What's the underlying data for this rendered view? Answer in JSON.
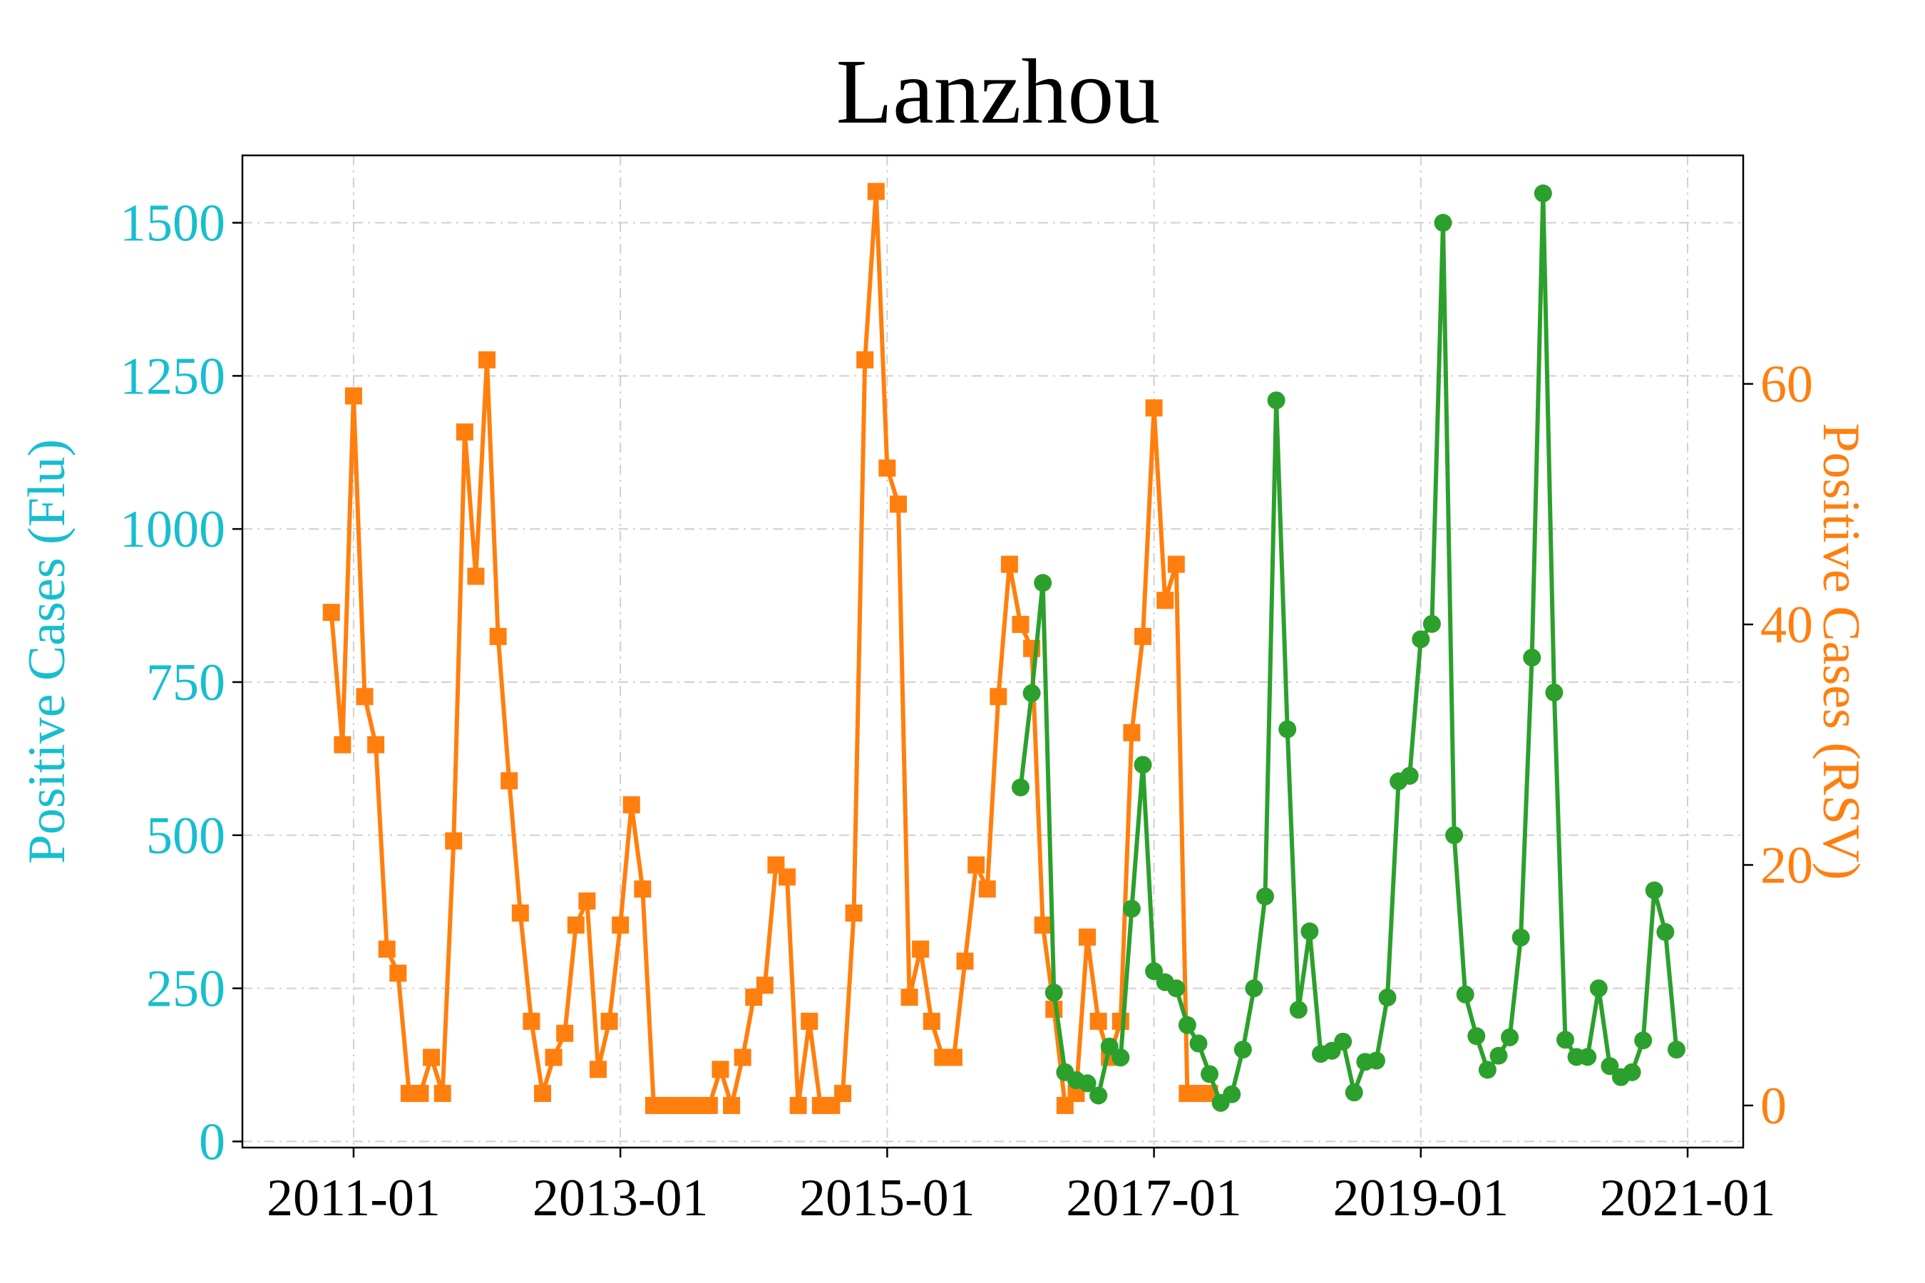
{
  "chart_data": {
    "type": "line",
    "title": "Lanzhou",
    "xlabel": "",
    "x_ticks": [
      "2011-01",
      "2013-01",
      "2015-01",
      "2017-01",
      "2019-01",
      "2021-01"
    ],
    "xlim": [
      "2010-03",
      "2021-06"
    ],
    "grid": true,
    "legend": false,
    "colors": {
      "flu": "#2ca02c",
      "rsv": "#ff7f0e",
      "flu_axis": "#17becf",
      "rsv_axis": "#ff7f0e"
    },
    "axes": {
      "left": {
        "label": "Positive Cases (Flu)",
        "ylim": [
          -10,
          1610
        ],
        "ticks": [
          0,
          250,
          500,
          750,
          1000,
          1250,
          1500
        ]
      },
      "right": {
        "label": "Positive Cases (RSV)",
        "ylim": [
          -3.5,
          79
        ],
        "ticks": [
          0,
          20,
          40,
          60
        ]
      }
    },
    "series": [
      {
        "axis": "right",
        "marker": "square",
        "points": [
          [
            "2010-11",
            41
          ],
          [
            "2010-12",
            30
          ],
          [
            "2011-01",
            59
          ],
          [
            "2011-02",
            34
          ],
          [
            "2011-03",
            30
          ],
          [
            "2011-04",
            13
          ],
          [
            "2011-05",
            11
          ],
          [
            "2011-06",
            1
          ],
          [
            "2011-07",
            1
          ],
          [
            "2011-08",
            4
          ],
          [
            "2011-09",
            1
          ],
          [
            "2011-10",
            22
          ],
          [
            "2011-11",
            56
          ],
          [
            "2011-12",
            44
          ],
          [
            "2012-01",
            62
          ],
          [
            "2012-02",
            39
          ],
          [
            "2012-03",
            27
          ],
          [
            "2012-04",
            16
          ],
          [
            "2012-05",
            7
          ],
          [
            "2012-06",
            1
          ],
          [
            "2012-07",
            4
          ],
          [
            "2012-08",
            6
          ],
          [
            "2012-09",
            15
          ],
          [
            "2012-10",
            17
          ],
          [
            "2012-11",
            3
          ],
          [
            "2012-12",
            7
          ],
          [
            "2013-01",
            15
          ],
          [
            "2013-02",
            25
          ],
          [
            "2013-03",
            18
          ],
          [
            "2013-04",
            0
          ],
          [
            "2013-05",
            0
          ],
          [
            "2013-06",
            0
          ],
          [
            "2013-07",
            0
          ],
          [
            "2013-08",
            0
          ],
          [
            "2013-09",
            0
          ],
          [
            "2013-10",
            3
          ],
          [
            "2013-11",
            0
          ],
          [
            "2013-12",
            4
          ],
          [
            "2014-01",
            9
          ],
          [
            "2014-02",
            10
          ],
          [
            "2014-03",
            20
          ],
          [
            "2014-04",
            19
          ],
          [
            "2014-05",
            0
          ],
          [
            "2014-06",
            7
          ],
          [
            "2014-07",
            0
          ],
          [
            "2014-08",
            0
          ],
          [
            "2014-09",
            1
          ],
          [
            "2014-10",
            16
          ],
          [
            "2014-11",
            62
          ],
          [
            "2014-12",
            76
          ],
          [
            "2015-01",
            53
          ],
          [
            "2015-02",
            50
          ],
          [
            "2015-03",
            9
          ],
          [
            "2015-04",
            13
          ],
          [
            "2015-05",
            7
          ],
          [
            "2015-06",
            4
          ],
          [
            "2015-07",
            4
          ],
          [
            "2015-08",
            12
          ],
          [
            "2015-09",
            20
          ],
          [
            "2015-10",
            18
          ],
          [
            "2015-11",
            34
          ],
          [
            "2015-12",
            45
          ],
          [
            "2016-01",
            40
          ],
          [
            "2016-02",
            38
          ],
          [
            "2016-03",
            15
          ],
          [
            "2016-04",
            8
          ],
          [
            "2016-05",
            0
          ],
          [
            "2016-06",
            1
          ],
          [
            "2016-07",
            14
          ],
          [
            "2016-08",
            7
          ],
          [
            "2016-09",
            4
          ],
          [
            "2016-10",
            7
          ],
          [
            "2016-11",
            31
          ],
          [
            "2016-12",
            39
          ],
          [
            "2017-01",
            58
          ],
          [
            "2017-02",
            42
          ],
          [
            "2017-03",
            45
          ],
          [
            "2017-04",
            1
          ],
          [
            "2017-05",
            1
          ],
          [
            "2017-06",
            1
          ]
        ]
      },
      {
        "axis": "left",
        "marker": "circle",
        "points": [
          [
            "2016-01",
            578
          ],
          [
            "2016-02",
            732
          ],
          [
            "2016-03",
            912
          ],
          [
            "2016-04",
            243
          ],
          [
            "2016-05",
            113
          ],
          [
            "2016-06",
            100
          ],
          [
            "2016-07",
            95
          ],
          [
            "2016-08",
            75
          ],
          [
            "2016-09",
            155
          ],
          [
            "2016-10",
            137
          ],
          [
            "2016-11",
            380
          ],
          [
            "2016-12",
            615
          ],
          [
            "2017-01",
            278
          ],
          [
            "2017-02",
            260
          ],
          [
            "2017-03",
            250
          ],
          [
            "2017-04",
            190
          ],
          [
            "2017-05",
            160
          ],
          [
            "2017-06",
            110
          ],
          [
            "2017-07",
            63
          ],
          [
            "2017-08",
            77
          ],
          [
            "2017-09",
            150
          ],
          [
            "2017-10",
            250
          ],
          [
            "2017-11",
            400
          ],
          [
            "2017-12",
            1210
          ],
          [
            "2018-01",
            673
          ],
          [
            "2018-02",
            215
          ],
          [
            "2018-03",
            343
          ],
          [
            "2018-04",
            143
          ],
          [
            "2018-05",
            148
          ],
          [
            "2018-06",
            163
          ],
          [
            "2018-07",
            80
          ],
          [
            "2018-08",
            130
          ],
          [
            "2018-09",
            132
          ],
          [
            "2018-10",
            235
          ],
          [
            "2018-11",
            588
          ],
          [
            "2018-12",
            597
          ],
          [
            "2019-01",
            820
          ],
          [
            "2019-02",
            845
          ],
          [
            "2019-03",
            1500
          ],
          [
            "2019-04",
            500
          ],
          [
            "2019-05",
            240
          ],
          [
            "2019-06",
            172
          ],
          [
            "2019-07",
            117
          ],
          [
            "2019-08",
            140
          ],
          [
            "2019-09",
            170
          ],
          [
            "2019-10",
            333
          ],
          [
            "2019-11",
            790
          ],
          [
            "2019-12",
            1548
          ],
          [
            "2020-01",
            733
          ],
          [
            "2020-02",
            166
          ],
          [
            "2020-03",
            138
          ],
          [
            "2020-04",
            138
          ],
          [
            "2020-05",
            250
          ],
          [
            "2020-06",
            123
          ],
          [
            "2020-07",
            105
          ],
          [
            "2020-08",
            113
          ],
          [
            "2020-09",
            165
          ],
          [
            "2020-10",
            410
          ],
          [
            "2020-11",
            342
          ],
          [
            "2020-12",
            150
          ]
        ]
      }
    ]
  }
}
